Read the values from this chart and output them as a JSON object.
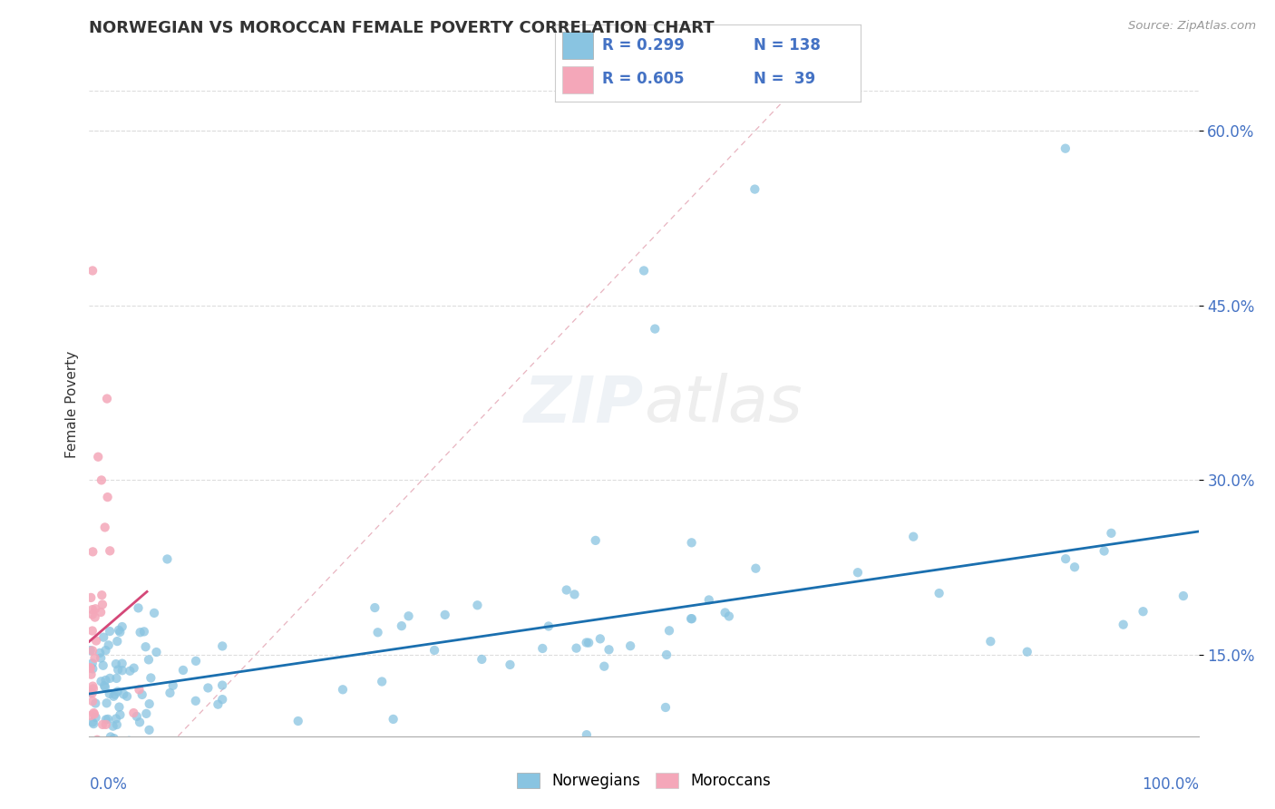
{
  "title": "NORWEGIAN VS MOROCCAN FEMALE POVERTY CORRELATION CHART",
  "source": "Source: ZipAtlas.com",
  "ylabel": "Female Poverty",
  "xlim": [
    0.0,
    1.0
  ],
  "ylim": [
    0.08,
    0.65
  ],
  "ytick_positions": [
    0.15,
    0.3,
    0.45,
    0.6
  ],
  "ytick_labels": [
    "15.0%",
    "30.0%",
    "45.0%",
    "60.0%"
  ],
  "watermark_text": "ZIPatlas",
  "blue_color": "#89c4e1",
  "pink_color": "#f4a7b9",
  "trend_blue": "#1a6faf",
  "trend_pink": "#d44878",
  "diag_color": "#dddddd",
  "grid_color": "#dddddd",
  "legend_R1": "R = 0.299",
  "legend_N1": "N = 138",
  "legend_R2": "R = 0.605",
  "legend_N2": "N =  39"
}
